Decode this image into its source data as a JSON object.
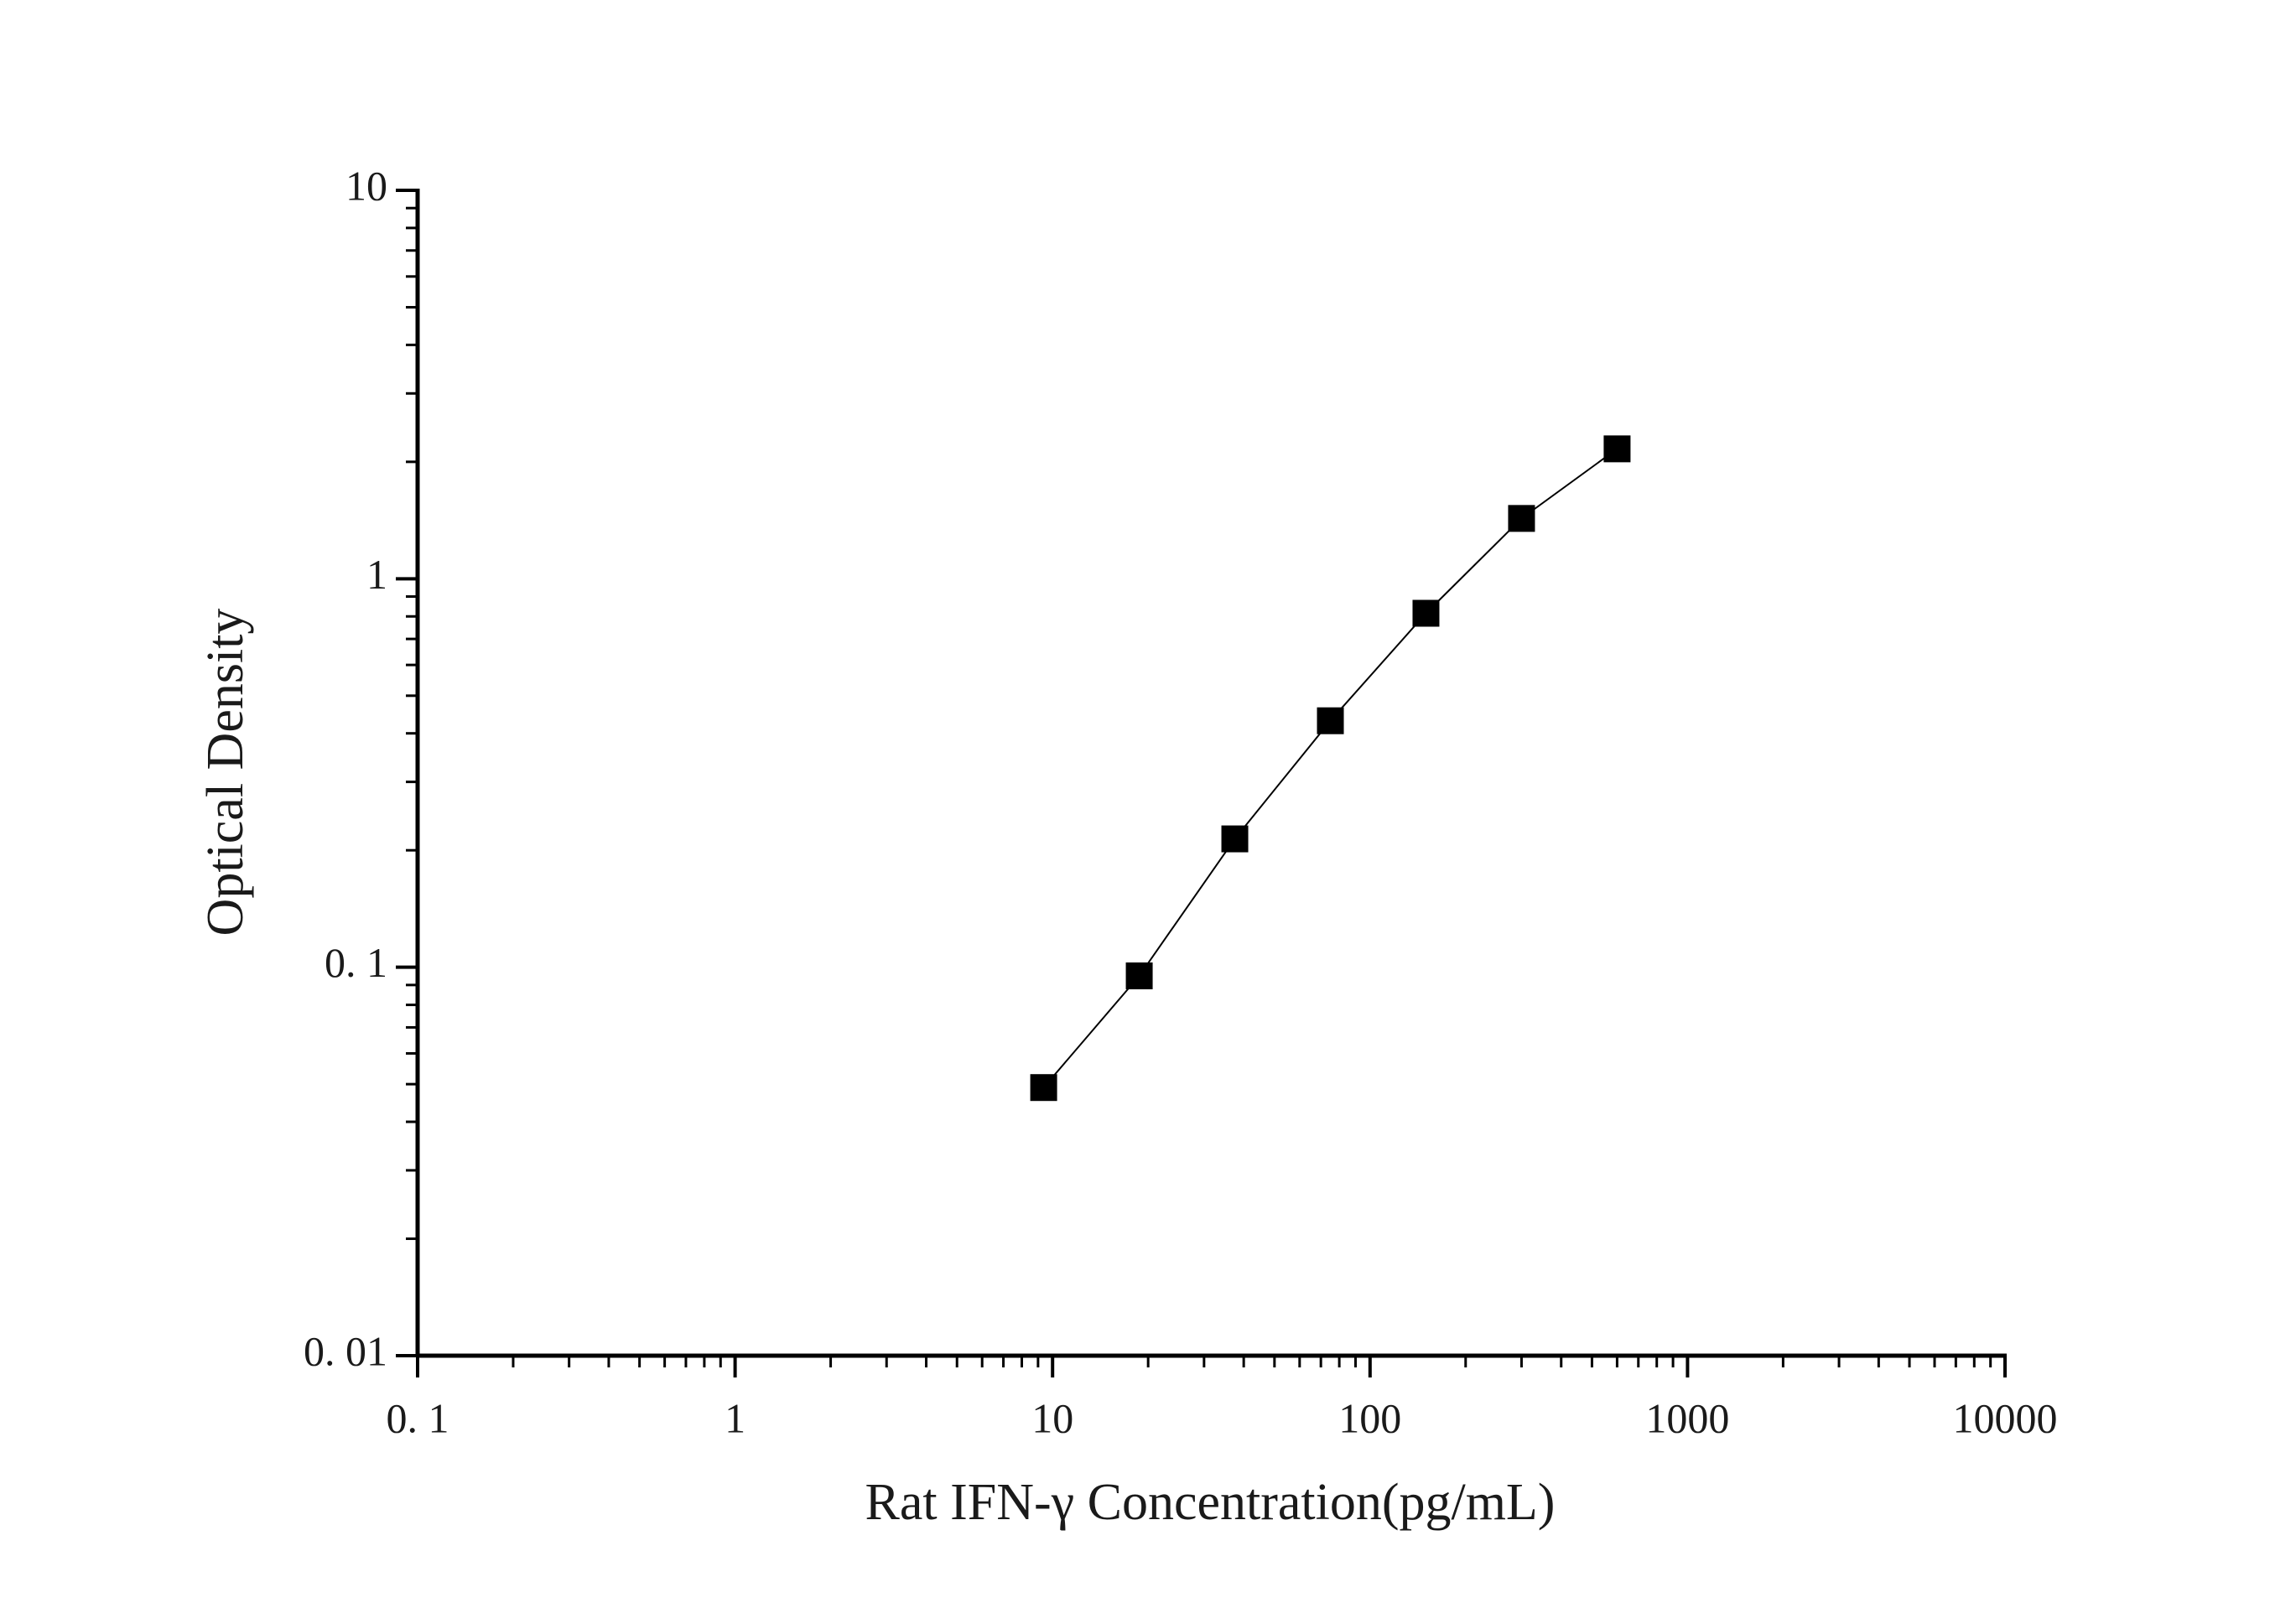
{
  "chart_data": {
    "type": "line",
    "x_label": "Rat IFN-γ Concentration(pg/mL)",
    "y_label": "Optical Density",
    "x": [
      9.375,
      18.75,
      37.5,
      75,
      150,
      300,
      600
    ],
    "values": [
      0.049,
      0.095,
      0.214,
      0.431,
      0.815,
      1.43,
      2.16
    ],
    "color": "#000000",
    "marker": "square",
    "x_scale": "log",
    "y_scale": "log",
    "xlim": [
      0.1,
      10000
    ],
    "ylim": [
      0.01,
      10
    ],
    "xticks": [
      {
        "value": 0.1,
        "label": "0. 1"
      },
      1,
      10,
      100,
      1000,
      10000
    ],
    "yticks": [
      {
        "value": 0.01,
        "label": "0. 01"
      },
      {
        "value": 0.1,
        "label": "0. 1"
      },
      1,
      10
    ],
    "grid": false
  }
}
